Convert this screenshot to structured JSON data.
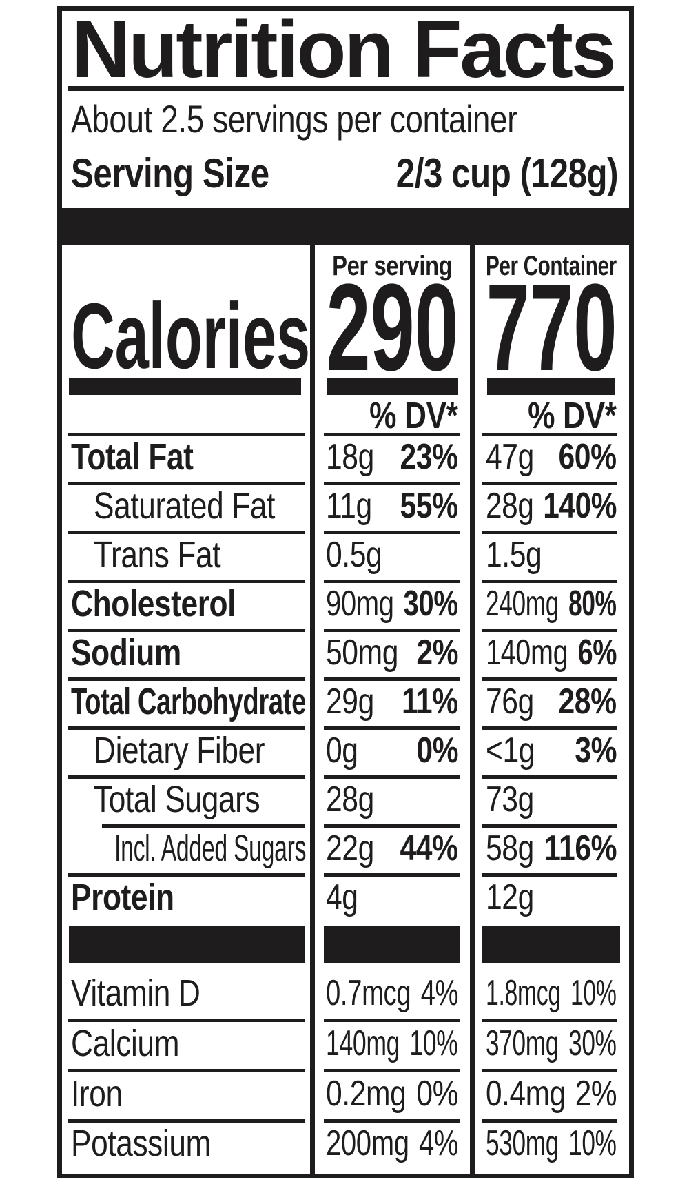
{
  "title": "Nutrition Facts",
  "servings_per_container": "About 2.5 servings per container",
  "serving_size": {
    "label": "Serving Size",
    "value": "2/3 cup (128g)"
  },
  "calories": {
    "label": "Calories",
    "per_serving_header": "Per serving",
    "per_serving_value": "290",
    "per_container_header": "Per Container",
    "per_container_value": "770"
  },
  "daily_value_header": "% DV*",
  "nutrients": [
    {
      "name": "Total Fat",
      "per_serving": {
        "amount": "18g",
        "dv": "23%"
      },
      "per_container": {
        "amount": "47g",
        "dv": "60%"
      }
    },
    {
      "name": "Saturated Fat",
      "per_serving": {
        "amount": "11g",
        "dv": "55%"
      },
      "per_container": {
        "amount": "28g",
        "dv": "140%"
      }
    },
    {
      "name": "Trans Fat",
      "per_serving": {
        "amount": "0.5g",
        "dv": ""
      },
      "per_container": {
        "amount": "1.5g",
        "dv": ""
      }
    },
    {
      "name": "Cholesterol",
      "per_serving": {
        "amount": "90mg",
        "dv": "30%"
      },
      "per_container": {
        "amount": "240mg",
        "dv": "80%"
      }
    },
    {
      "name": "Sodium",
      "per_serving": {
        "amount": "50mg",
        "dv": "2%"
      },
      "per_container": {
        "amount": "140mg",
        "dv": "6%"
      }
    },
    {
      "name": "Total Carbohydrate",
      "per_serving": {
        "amount": "29g",
        "dv": "11%"
      },
      "per_container": {
        "amount": "76g",
        "dv": "28%"
      }
    },
    {
      "name": "Dietary Fiber",
      "per_serving": {
        "amount": "0g",
        "dv": "0%"
      },
      "per_container": {
        "amount": "<1g",
        "dv": "3%"
      }
    },
    {
      "name": "Total Sugars",
      "per_serving": {
        "amount": "28g",
        "dv": ""
      },
      "per_container": {
        "amount": "73g",
        "dv": ""
      }
    },
    {
      "name": "Incl. Added Sugars",
      "per_serving": {
        "amount": "22g",
        "dv": "44%"
      },
      "per_container": {
        "amount": "58g",
        "dv": "116%"
      }
    },
    {
      "name": "Protein",
      "per_serving": {
        "amount": "4g",
        "dv": ""
      },
      "per_container": {
        "amount": "12g",
        "dv": ""
      }
    }
  ],
  "vitamins": [
    {
      "name": "Vitamin D",
      "per_serving": {
        "amount": "0.7mcg",
        "dv": "4%"
      },
      "per_container": {
        "amount": "1.8mcg",
        "dv": "10%"
      }
    },
    {
      "name": "Calcium",
      "per_serving": {
        "amount": "140mg",
        "dv": "10%"
      },
      "per_container": {
        "amount": "370mg",
        "dv": "30%"
      }
    },
    {
      "name": "Iron",
      "per_serving": {
        "amount": "0.2mg",
        "dv": "0%"
      },
      "per_container": {
        "amount": "0.4mg",
        "dv": "2%"
      }
    },
    {
      "name": "Potassium",
      "per_serving": {
        "amount": "200mg",
        "dv": "4%"
      },
      "per_container": {
        "amount": "530mg",
        "dv": "10%"
      }
    }
  ],
  "colors": {
    "ink": "#1e1c1d",
    "background": "#ffffff"
  }
}
